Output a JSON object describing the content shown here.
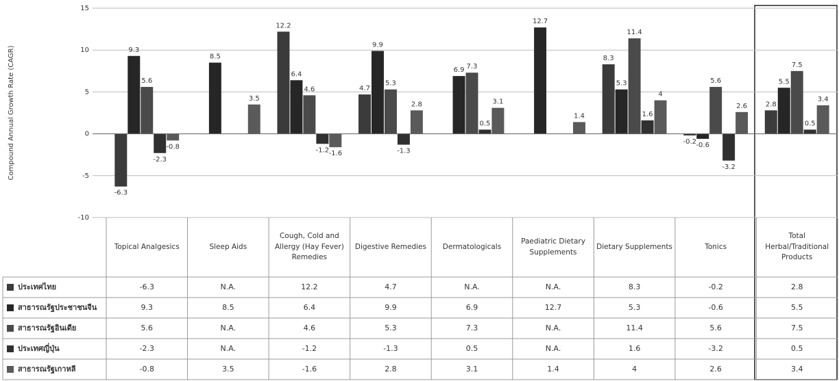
{
  "chart_data": {
    "type": "bar",
    "y_label": "Compound Annual Growth Rate (CAGR)",
    "categories": [
      "Topical Analgesics",
      "Sleep Aids",
      "Cough, Cold and Allergy (Hay Fever) Remedies",
      "Digestive Remedies",
      "Dermatologicals",
      "Paediatric Dietary Supplements",
      "Dietary Supplements",
      "Tonics",
      "Total Herbal/Traditional Products"
    ],
    "series": [
      {
        "name": "ประเทศไทย",
        "color": "#3b3b3b",
        "values": [
          -6.3,
          null,
          12.2,
          4.7,
          null,
          null,
          8.3,
          -0.2,
          2.8
        ],
        "value_labels": [
          "-6.3",
          "N.A.",
          "12.2",
          "4.7",
          "N.A.",
          "N.A.",
          "8.3",
          "-0.2",
          "2.8"
        ]
      },
      {
        "name": "สาธารณรัฐประชาชนจีน",
        "color": "#262626",
        "values": [
          9.3,
          8.5,
          6.4,
          9.9,
          6.9,
          12.7,
          5.3,
          -0.6,
          5.5
        ],
        "value_labels": [
          "9.3",
          "8.5",
          "6.4",
          "9.9",
          "6.9",
          "12.7",
          "5.3",
          "-0.6",
          "5.5"
        ]
      },
      {
        "name": "สาธารณรัฐอินเดีย",
        "color": "#4a4a4a",
        "values": [
          5.6,
          null,
          4.6,
          5.3,
          7.3,
          null,
          11.4,
          5.6,
          7.5
        ],
        "value_labels": [
          "5.6",
          "N.A.",
          "4.6",
          "5.3",
          "7.3",
          "N.A.",
          "11.4",
          "5.6",
          "7.5"
        ]
      },
      {
        "name": "ประเทศญี่ปุ่น",
        "color": "#303030",
        "values": [
          -2.3,
          null,
          -1.2,
          -1.3,
          0.5,
          null,
          1.6,
          -3.2,
          0.5
        ],
        "value_labels": [
          "-2.3",
          "N.A.",
          "-1.2",
          "-1.3",
          "0.5",
          "N.A.",
          "1.6",
          "-3.2",
          "0.5"
        ]
      },
      {
        "name": "สาธารณรัฐเกาหลี",
        "color": "#5a5a5a",
        "values": [
          -0.8,
          3.5,
          -1.6,
          2.8,
          3.1,
          1.4,
          4,
          2.6,
          3.4
        ],
        "value_labels": [
          "-0.8",
          "3.5",
          "-1.6",
          "2.8",
          "3.1",
          "1.4",
          "4",
          "2.6",
          "3.4"
        ]
      }
    ],
    "ylim": [
      -10,
      15
    ],
    "yticks": [
      -10,
      -5,
      0,
      5,
      10,
      15
    ],
    "grid": true
  }
}
